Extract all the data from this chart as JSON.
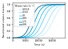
{
  "title": "Shear rate (s⁻¹)",
  "xlabel": "Time (s)",
  "ylabel": "Transformed volume fraction",
  "shear_rates": [
    "0.0118",
    "0.118",
    "0.5",
    "0.89",
    "1.75",
    "4.46"
  ],
  "colors": [
    "#c8eeff",
    "#99ddff",
    "#55ccff",
    "#22bbee",
    "#0099cc",
    "#006699"
  ],
  "curve_params": [
    {
      "t_half": 15500,
      "k": 0.0006
    },
    {
      "t_half": 13500,
      "k": 0.00065
    },
    {
      "t_half": 11500,
      "k": 0.0007
    },
    {
      "t_half": 10000,
      "k": 0.00075
    },
    {
      "t_half": 8500,
      "k": 0.0008
    },
    {
      "t_half": 7000,
      "k": 0.00085
    }
  ],
  "xlim": [
    0,
    20000
  ],
  "ylim": [
    0,
    1.05
  ],
  "xticks": [
    0,
    5000,
    10000,
    15000
  ],
  "xtick_labels": [
    "0",
    "5000",
    "10000",
    "15000"
  ],
  "yticks": [
    0.0,
    0.2,
    0.4,
    0.6,
    0.8,
    1.0
  ],
  "ytick_labels": [
    "0.0",
    "0.2",
    "0.4",
    "0.6",
    "0.8",
    "1.0"
  ],
  "background_color": "#ffffff",
  "linewidth": 0.7
}
